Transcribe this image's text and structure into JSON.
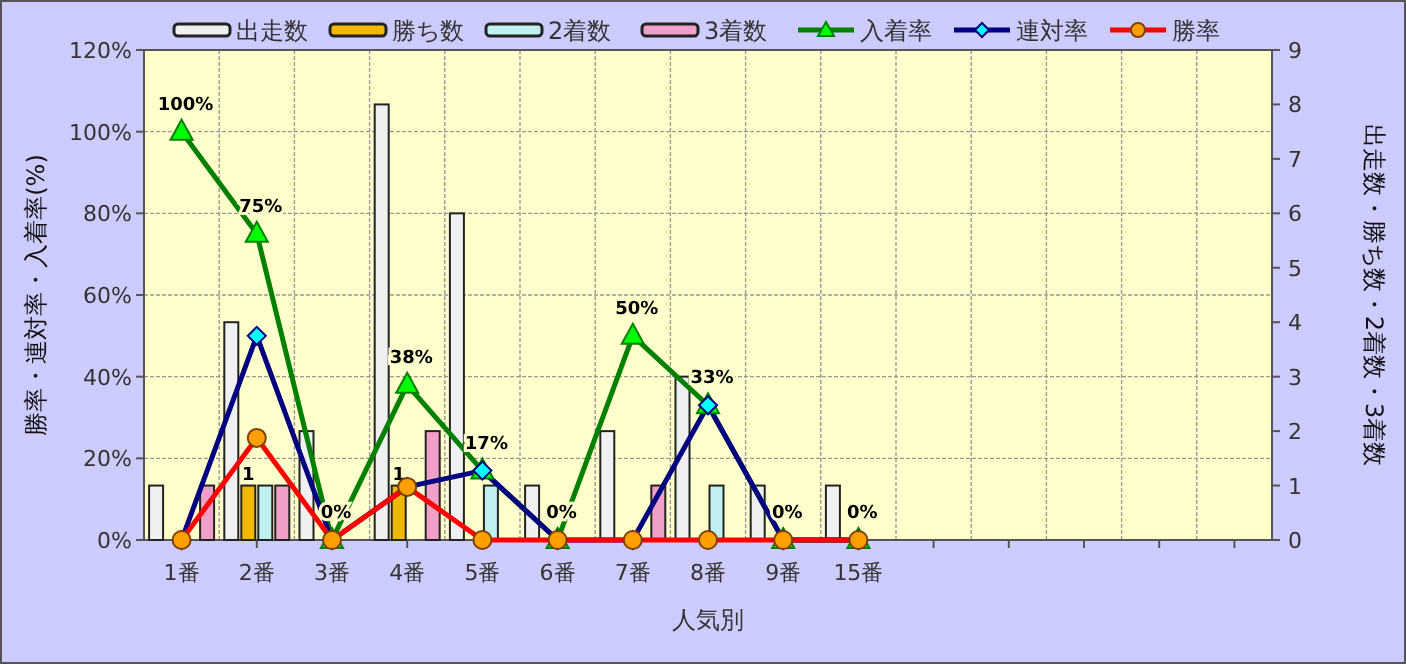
{
  "chart_data": {
    "type": "bar",
    "xlabel": "人気別",
    "ylabel": "勝率・連対率・入着率(%)",
    "y2label": "出走数・勝ち数・2着数・3着数",
    "categories": [
      "1番",
      "2番",
      "3番",
      "4番",
      "5番",
      "6番",
      "7番",
      "8番",
      "9番",
      "15番",
      null,
      null,
      null,
      null,
      null
    ],
    "series": [
      {
        "name": "出走数",
        "color": "#f0f0f0",
        "axis": "y2",
        "values": [
          1,
          4,
          2,
          8,
          6,
          1,
          2,
          3,
          1,
          1,
          null,
          null,
          null,
          null,
          null
        ]
      },
      {
        "name": "勝ち数",
        "color": "#f0b800",
        "axis": "y2",
        "values": [
          0,
          1,
          0,
          1,
          0,
          0,
          0,
          0,
          0,
          0,
          null,
          null,
          null,
          null,
          null
        ],
        "value_labels": [
          null,
          "1",
          null,
          "1",
          null,
          null,
          null,
          null,
          null,
          null,
          null,
          null,
          null,
          null,
          null
        ]
      },
      {
        "name": "2着数",
        "color": "#c0f0f0",
        "axis": "y2",
        "values": [
          0,
          1,
          0,
          0,
          1,
          0,
          0,
          1,
          0,
          0,
          null,
          null,
          null,
          null,
          null
        ]
      },
      {
        "name": "3着数",
        "color": "#f0a0c8",
        "axis": "y2",
        "values": [
          1,
          1,
          0,
          2,
          0,
          0,
          1,
          0,
          0,
          0,
          null,
          null,
          null,
          null,
          null
        ]
      },
      {
        "name": "入着率",
        "type": "line",
        "color": "#008000",
        "marker": "triangle",
        "values": [
          100,
          75,
          0,
          38,
          17,
          0,
          50,
          33,
          0,
          0,
          null,
          null,
          null,
          null,
          null
        ],
        "value_labels": [
          "100%",
          "75%",
          "0%",
          "38%",
          "17%",
          "0%",
          "50%",
          "33%",
          "0%",
          "0%",
          null,
          null,
          null,
          null,
          null
        ]
      },
      {
        "name": "連対率",
        "type": "line",
        "color": "#000080",
        "marker": "diamond",
        "values": [
          0,
          50,
          0,
          13,
          17,
          0,
          0,
          33,
          0,
          0,
          null,
          null,
          null,
          null,
          null
        ]
      },
      {
        "name": "勝率",
        "type": "line",
        "color": "#ff0000",
        "marker": "circle",
        "values": [
          0,
          25,
          0,
          13,
          0,
          0,
          0,
          0,
          0,
          0,
          null,
          null,
          null,
          null,
          null
        ]
      }
    ],
    "ylim": [
      0,
      120
    ],
    "yticks": [
      {
        "value": 0,
        "label": "0%"
      },
      {
        "value": 20,
        "label": "20%"
      },
      {
        "value": 40,
        "label": "40%"
      },
      {
        "value": 60,
        "label": "60%"
      },
      {
        "value": 80,
        "label": "80%"
      },
      {
        "value": 100,
        "label": "100%"
      },
      {
        "value": 120,
        "label": "120%"
      }
    ],
    "y2lim": [
      0,
      9
    ],
    "y2ticks": [
      0,
      1,
      2,
      3,
      4,
      5,
      6,
      7,
      8,
      9
    ],
    "grid": true,
    "legend": "top"
  }
}
